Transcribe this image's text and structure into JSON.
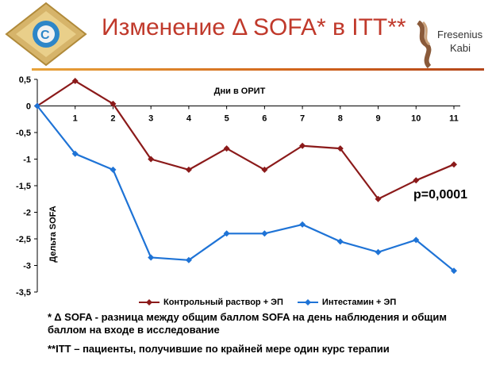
{
  "header": {
    "title": "Изменение Δ SOFA* в ITT**",
    "brand_line1": "Fresenius",
    "brand_line2": "Kabi"
  },
  "colors": {
    "accent": "#c0392b",
    "series_control": "#8b1a1a",
    "series_intestamin": "#1e73d6",
    "title_bar": "#d1631b"
  },
  "chart_data": {
    "type": "line",
    "x": [
      0,
      1,
      2,
      3,
      4,
      5,
      6,
      7,
      8,
      9,
      10,
      11
    ],
    "xlabel": "Дни в ОРИТ",
    "ylabel": "Дельта SOFA",
    "ylim": [
      -3.5,
      0.5
    ],
    "yticks": [
      "0,5",
      "0",
      "-0,5",
      "-1",
      "-1,5",
      "-2",
      "-2,5",
      "-3",
      "-3,5"
    ],
    "xtick_labels": [
      "1",
      "2",
      "3",
      "4",
      "5",
      "6",
      "7",
      "8",
      "9",
      "10",
      "11"
    ],
    "grid": false,
    "legend_position": "bottom",
    "series": [
      {
        "name": "Контрольный раствор + ЭП",
        "color": "#8b1a1a",
        "marker": "diamond",
        "values": [
          0,
          0.47,
          0.04,
          -1.0,
          -1.2,
          -0.8,
          -1.2,
          -0.75,
          -0.8,
          -1.75,
          -1.4,
          -1.1
        ]
      },
      {
        "name": "Интестамин + ЭП",
        "color": "#1e73d6",
        "marker": "diamond",
        "values": [
          0,
          -0.9,
          -1.2,
          -2.85,
          -2.9,
          -2.4,
          -2.4,
          -2.23,
          -2.55,
          -2.75,
          -2.52,
          -3.1
        ]
      }
    ],
    "annotation": "p=0,0001"
  },
  "notes": {
    "note1": "* Δ SOFA  - разница между общим баллом SOFA на день наблюдения и общим баллом на входе в исследование",
    "note2": "**ITT – пациенты, получившие по крайней мере один курс терапии"
  }
}
